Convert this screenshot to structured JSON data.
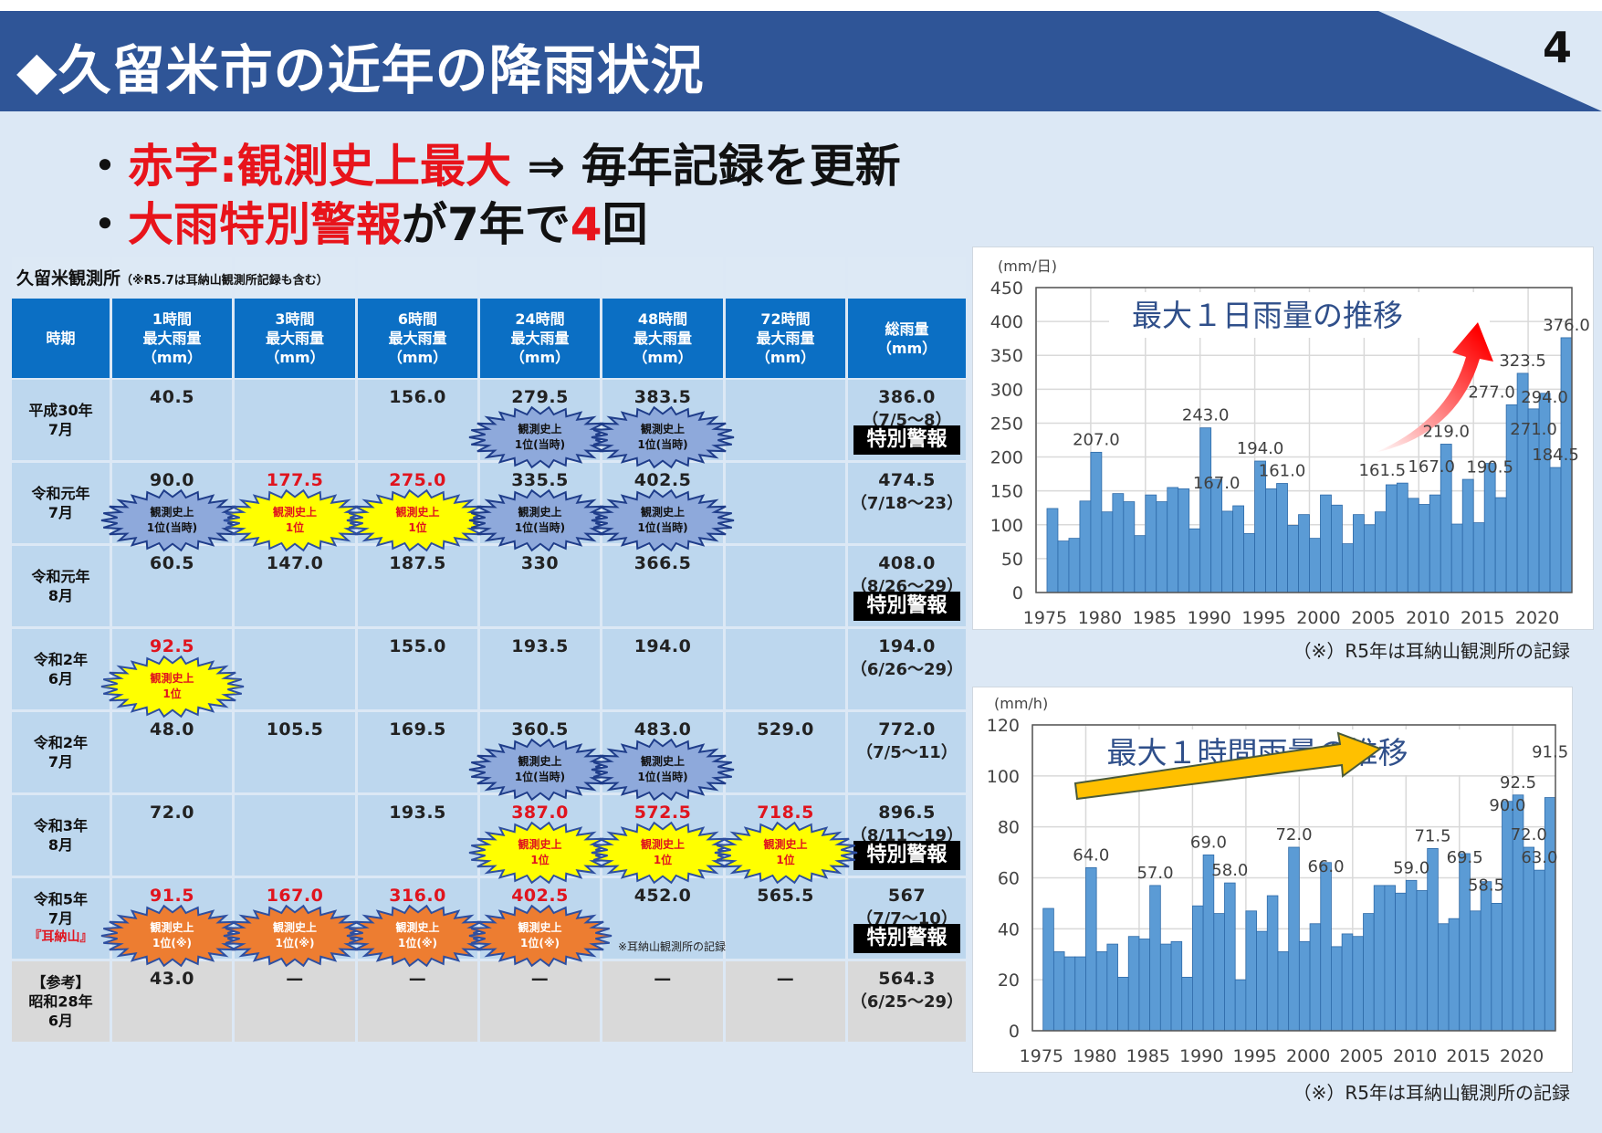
{
  "header": {
    "title": "◆久留米市の近年の降雨状況",
    "page_number": "4"
  },
  "bullets": [
    {
      "marker": "・",
      "red": "赤字:観測史上最大",
      "rest": " ⇒  毎年記録を更新"
    },
    {
      "marker": "・",
      "red": "大雨特別警報",
      "rest": "が7年で",
      "red2": "4",
      "rest2": "回"
    }
  ],
  "table": {
    "caption": "久留米観測所",
    "caption_note": "（※R5.7は耳納山観測所記録も含む）",
    "headers": [
      [
        "時期"
      ],
      [
        "1時間",
        "最大雨量",
        "（mm）"
      ],
      [
        "3時間",
        "最大雨量",
        "（mm）"
      ],
      [
        "6時間",
        "最大雨量",
        "（mm）"
      ],
      [
        "24時間",
        "最大雨量",
        "（mm）"
      ],
      [
        "48時間",
        "最大雨量",
        "（mm）"
      ],
      [
        "72時間",
        "最大雨量",
        "（mm）"
      ],
      [
        "総雨量",
        "（mm）"
      ]
    ],
    "badges": {
      "blue": [
        "観測史上",
        "1位(当時)"
      ],
      "yellow": [
        "観測史上",
        "1位"
      ],
      "orange": [
        "観測史上",
        "1位(※)"
      ]
    },
    "warning_label": "特別警報",
    "note": "※耳納山観測所の記録",
    "rows": [
      {
        "period": [
          "平成30年",
          "7月"
        ],
        "cells": [
          {
            "v": "40.5"
          },
          {
            "v": ""
          },
          {
            "v": "156.0"
          },
          {
            "v": "279.5",
            "b": "blue"
          },
          {
            "v": "383.5",
            "b": "blue"
          },
          {
            "v": ""
          }
        ],
        "total": "386.0",
        "dates": "（7/5～8）",
        "warning": true
      },
      {
        "period": [
          "令和元年",
          "7月"
        ],
        "cells": [
          {
            "v": "90.0",
            "b": "blue"
          },
          {
            "v": "177.5",
            "red": true,
            "b": "yellow"
          },
          {
            "v": "275.0",
            "red": true,
            "b": "yellow"
          },
          {
            "v": "335.5",
            "b": "blue"
          },
          {
            "v": "402.5",
            "b": "blue"
          },
          {
            "v": ""
          }
        ],
        "total": "474.5",
        "dates": "（7/18～23）",
        "warning": false
      },
      {
        "period": [
          "令和元年",
          "8月"
        ],
        "cells": [
          {
            "v": "60.5"
          },
          {
            "v": "147.0"
          },
          {
            "v": "187.5"
          },
          {
            "v": "330"
          },
          {
            "v": "366.5"
          },
          {
            "v": ""
          }
        ],
        "total": "408.0",
        "dates": "（8/26～29）",
        "warning": true
      },
      {
        "period": [
          "令和2年",
          "6月"
        ],
        "cells": [
          {
            "v": "92.5",
            "red": true,
            "b": "yellow"
          },
          {
            "v": ""
          },
          {
            "v": "155.0"
          },
          {
            "v": "193.5"
          },
          {
            "v": "194.0"
          },
          {
            "v": ""
          }
        ],
        "total": "194.0",
        "dates": "（6/26～29）",
        "warning": false
      },
      {
        "period": [
          "令和2年",
          "7月"
        ],
        "cells": [
          {
            "v": "48.0"
          },
          {
            "v": "105.5"
          },
          {
            "v": "169.5"
          },
          {
            "v": "360.5",
            "b": "blue"
          },
          {
            "v": "483.0",
            "b": "blue"
          },
          {
            "v": "529.0"
          }
        ],
        "total": "772.0",
        "dates": "（7/5～11）",
        "warning": false
      },
      {
        "period": [
          "令和3年",
          "8月"
        ],
        "cells": [
          {
            "v": "72.0"
          },
          {
            "v": ""
          },
          {
            "v": "193.5"
          },
          {
            "v": "387.0",
            "red": true,
            "b": "yellow"
          },
          {
            "v": "572.5",
            "red": true,
            "b": "yellow"
          },
          {
            "v": "718.5",
            "red": true,
            "b": "yellow"
          }
        ],
        "total": "896.5",
        "dates": "（8/11～19）",
        "warning": true
      },
      {
        "period": [
          "令和5年",
          "7月"
        ],
        "period_red": "『耳納山』",
        "cells": [
          {
            "v": "91.5",
            "red": true,
            "b": "orange"
          },
          {
            "v": "167.0",
            "red": true,
            "b": "orange"
          },
          {
            "v": "316.0",
            "red": true,
            "b": "orange"
          },
          {
            "v": "402.5",
            "red": true,
            "b": "orange"
          },
          {
            "v": "452.0"
          },
          {
            "v": "565.5"
          }
        ],
        "total": "567",
        "dates": "（7/7～10）",
        "warning": true
      },
      {
        "period": [
          "【参考】",
          "昭和28年",
          "6月"
        ],
        "reference": true,
        "cells": [
          {
            "v": "43.0"
          },
          {
            "v": "—"
          },
          {
            "v": "—"
          },
          {
            "v": "—"
          },
          {
            "v": "—"
          },
          {
            "v": "—"
          }
        ],
        "total": "564.3",
        "dates": "（6/25～29）",
        "warning": false
      }
    ]
  },
  "chart_data": [
    {
      "type": "bar",
      "title": "最大１日雨量の推移",
      "ylabel": "(mm/日)",
      "xlabel": "",
      "ylim": [
        0,
        450
      ],
      "yticks": [
        0,
        50,
        100,
        150,
        200,
        250,
        300,
        350,
        400,
        450
      ],
      "xticks": [
        1975,
        1980,
        1985,
        1990,
        1995,
        2000,
        2005,
        2010,
        2015,
        2020
      ],
      "x_start": 1976,
      "grid": true,
      "values": [
        124,
        76,
        80,
        135,
        207,
        119,
        146,
        134,
        84,
        144,
        134,
        155,
        153,
        94,
        243,
        167,
        120,
        128,
        87,
        194,
        153,
        161,
        99,
        115,
        80,
        144,
        129,
        72,
        115,
        100,
        119,
        159,
        161.5,
        139,
        130,
        144,
        219,
        101,
        167,
        103,
        190.5,
        140,
        277,
        323.5,
        271,
        294,
        184.5,
        376
      ],
      "labeled_years": [
        1980,
        1990,
        1991,
        1995,
        1997,
        2008,
        2012,
        2014,
        2016,
        2018,
        2019,
        2020,
        2021,
        2022,
        2023
      ],
      "note": "（※）R5年は耳納山観測所の記録",
      "color": "#5b9bd5"
    },
    {
      "type": "bar",
      "title": "最大１時間雨量の推移",
      "ylabel": "(mm/h)",
      "xlabel": "",
      "ylim": [
        0,
        120
      ],
      "yticks": [
        0,
        20,
        40,
        60,
        80,
        100,
        120
      ],
      "xticks": [
        1975,
        1980,
        1985,
        1990,
        1995,
        2000,
        2005,
        2010,
        2015,
        2020
      ],
      "x_start": 1976,
      "grid": true,
      "values": [
        48,
        31,
        29,
        29,
        64,
        31,
        34,
        21,
        37,
        36,
        57,
        34,
        35,
        21,
        49,
        69,
        46,
        58,
        20,
        47,
        39,
        53,
        31,
        72,
        35,
        42,
        66,
        33,
        38,
        37,
        46,
        57,
        57,
        54,
        59,
        55,
        71.5,
        42,
        44,
        69.5,
        47,
        58.5,
        50,
        90,
        92.5,
        72,
        63,
        91.5
      ],
      "labeled_years": [
        1980,
        1986,
        1991,
        1993,
        1999,
        2002,
        2010,
        2012,
        2015,
        2017,
        2019,
        2020,
        2021,
        2022,
        2023
      ],
      "note": "（※）R5年は耳納山観測所の記録",
      "color": "#5b9bd5"
    }
  ]
}
